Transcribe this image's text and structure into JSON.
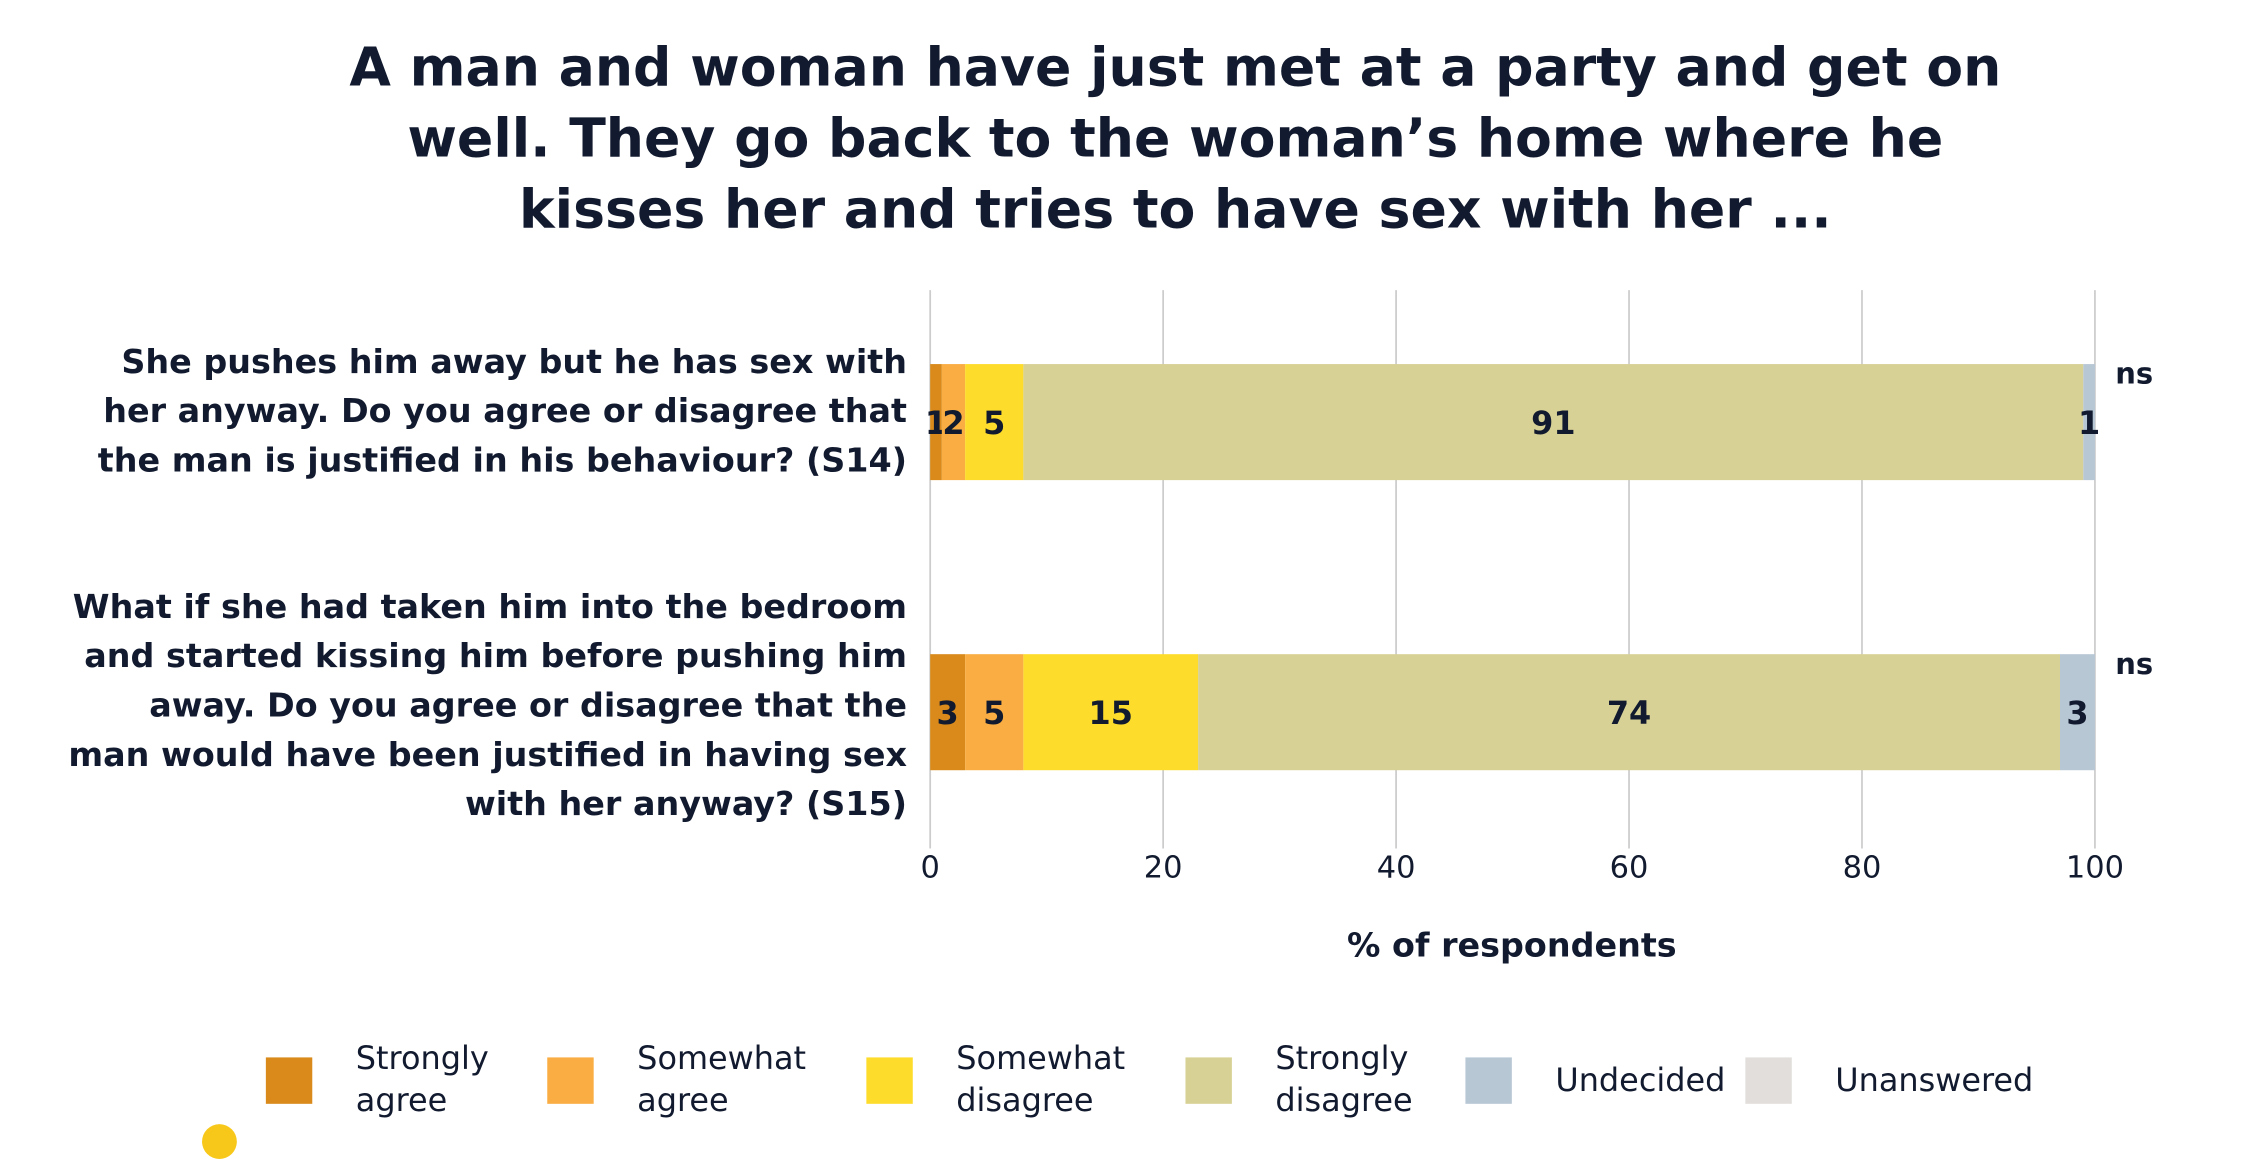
{
  "chart_data": {
    "type": "stacked-bar-horizontal",
    "title": "A man and woman have just met at a party and get on well. They go back to the woman’s home where he kisses her and tries to have sex with her ...",
    "categories": [
      "She pushes him away but he has sex with her anyway. Do you agree or disagree that the man is justified in his behaviour? (S14)",
      "What if she had taken him into the bedroom and started kissing him before pushing him away. Do you agree or disagree that the man would have been justified in having sex with her anyway? (S15)"
    ],
    "annotations": [
      "ns",
      "ns"
    ],
    "series": [
      {
        "name": "Strongly agree",
        "color": "#d98a1a",
        "values": [
          1,
          3
        ]
      },
      {
        "name": "Somewhat agree",
        "color": "#f9ad42",
        "values": [
          2,
          5
        ]
      },
      {
        "name": "Somewhat disagree",
        "color": "#fddc2b",
        "values": [
          5,
          15
        ]
      },
      {
        "name": "Strongly disagree",
        "color": "#d8d195",
        "values": [
          91,
          74
        ]
      },
      {
        "name": "Undecided",
        "color": "#b7c7d4",
        "values": [
          1,
          3
        ]
      },
      {
        "name": "Unanswered",
        "color": "#e2dedb",
        "values": [
          0,
          0
        ]
      }
    ],
    "xlim": [
      0,
      100
    ],
    "xticks": [
      0,
      20,
      40,
      60,
      80,
      100
    ],
    "x_label": "% of respondents",
    "grid": true
  }
}
